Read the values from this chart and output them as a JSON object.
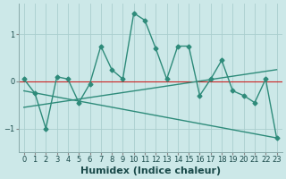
{
  "x": [
    0,
    1,
    2,
    3,
    4,
    5,
    6,
    7,
    8,
    9,
    10,
    11,
    12,
    13,
    14,
    15,
    16,
    17,
    18,
    19,
    20,
    21,
    22,
    23
  ],
  "y_line": [
    0.05,
    -0.25,
    -1.0,
    0.1,
    0.05,
    -0.45,
    -0.05,
    0.75,
    0.25,
    0.05,
    1.45,
    1.3,
    0.7,
    0.05,
    0.75,
    0.75,
    -0.3,
    0.05,
    0.45,
    -0.2,
    -0.3,
    -0.45,
    0.05,
    -1.2
  ],
  "trend1_x": [
    0,
    23
  ],
  "trend1_y": [
    -0.2,
    -1.2
  ],
  "trend2_x": [
    0,
    23
  ],
  "trend2_y": [
    -0.55,
    0.25
  ],
  "line_color": "#2e8b7a",
  "bg_color": "#cce8e8",
  "grid_color": "#aacece",
  "grid_major_color": "#b8d8d8",
  "xlabel": "Humidex (Indice chaleur)",
  "ylabel": "",
  "xlim": [
    -0.5,
    23.5
  ],
  "ylim": [
    -1.5,
    1.65
  ],
  "yticks": [
    -1,
    0,
    1
  ],
  "xticks": [
    0,
    1,
    2,
    3,
    4,
    5,
    6,
    7,
    8,
    9,
    10,
    11,
    12,
    13,
    14,
    15,
    16,
    17,
    18,
    19,
    20,
    21,
    22,
    23
  ],
  "marker": "D",
  "markersize": 2.5,
  "linewidth": 1.0,
  "font_size": 7.5,
  "xlabel_fontsize": 8,
  "tick_fontsize": 6,
  "red_line_y": 0,
  "red_line_color": "#cc2222"
}
